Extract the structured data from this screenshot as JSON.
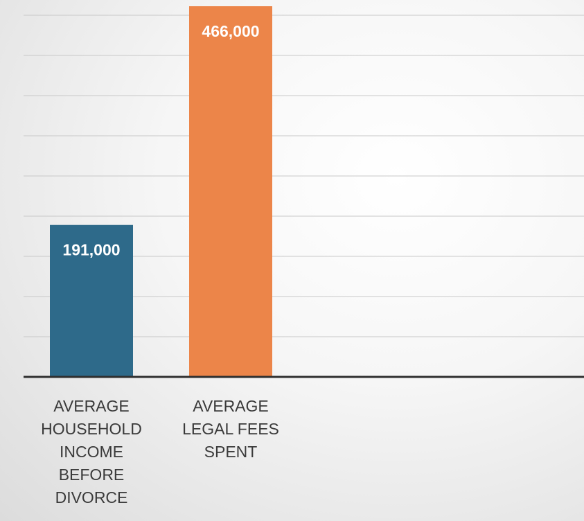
{
  "chart_data": {
    "type": "bar",
    "categories": [
      [
        "AVERAGE",
        "HOUSEHOLD",
        "INCOME",
        "BEFORE",
        "DIVORCE"
      ],
      [
        "AVERAGE",
        "LEGAL FEES",
        "SPENT"
      ]
    ],
    "values": [
      191000,
      466000
    ],
    "data_labels": [
      "191,000",
      "466,000"
    ],
    "colors": [
      "#2e6a8a",
      "#ec8549"
    ],
    "grid_color": "#c8c8c8",
    "axis_color": "#2f2f2f",
    "grid": true,
    "ylim": [
      0,
      466000
    ],
    "title": "",
    "xlabel": "",
    "ylabel": ""
  }
}
